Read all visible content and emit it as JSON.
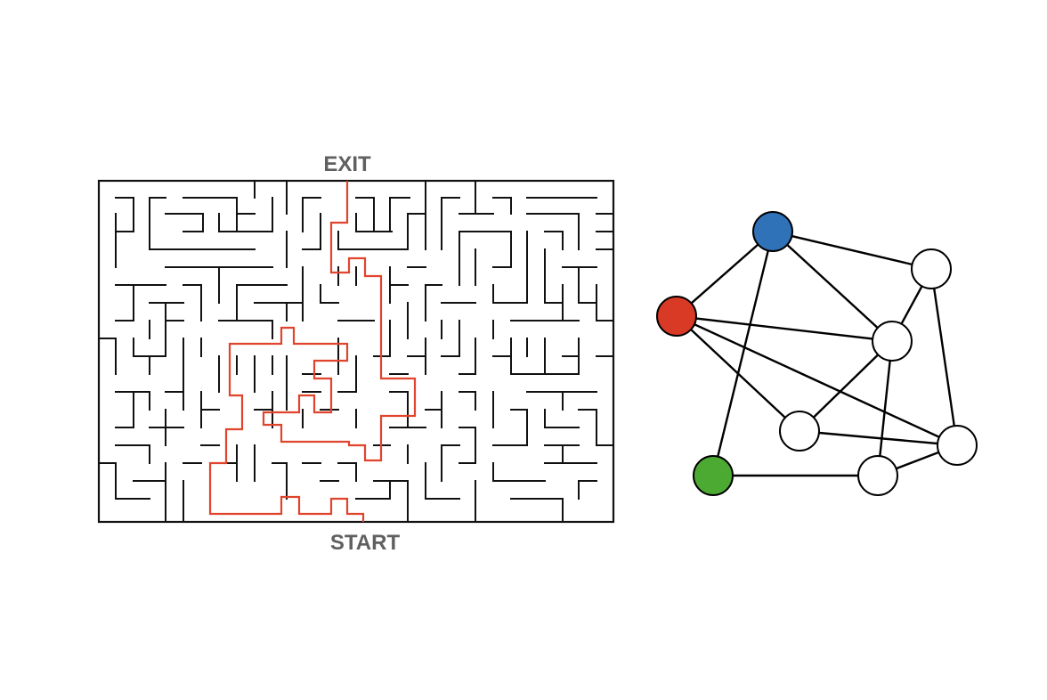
{
  "maze": {
    "exit_label": "EXIT",
    "start_label": "START",
    "wall_color": "#111111",
    "solution_color": "#e0442c"
  },
  "graph": {
    "edge_color": "#000000",
    "node_outline": "#000000",
    "nodes": [
      {
        "id": "blue",
        "color": "#2f72b8"
      },
      {
        "id": "red",
        "color": "#d93a26"
      },
      {
        "id": "green",
        "color": "#4caa33"
      },
      {
        "id": "n1",
        "color": "#ffffff"
      },
      {
        "id": "n2",
        "color": "#ffffff"
      },
      {
        "id": "n3",
        "color": "#ffffff"
      },
      {
        "id": "n4",
        "color": "#ffffff"
      },
      {
        "id": "n5",
        "color": "#ffffff"
      }
    ],
    "edges": [
      [
        "blue",
        "red"
      ],
      [
        "blue",
        "n1"
      ],
      [
        "blue",
        "n2"
      ],
      [
        "blue",
        "green"
      ],
      [
        "red",
        "n2"
      ],
      [
        "red",
        "n3"
      ],
      [
        "red",
        "n4"
      ],
      [
        "n1",
        "n2"
      ],
      [
        "n1",
        "n4"
      ],
      [
        "n2",
        "n3"
      ],
      [
        "n2",
        "n5"
      ],
      [
        "n3",
        "n4"
      ],
      [
        "green",
        "n5"
      ],
      [
        "n5",
        "n4"
      ]
    ]
  }
}
